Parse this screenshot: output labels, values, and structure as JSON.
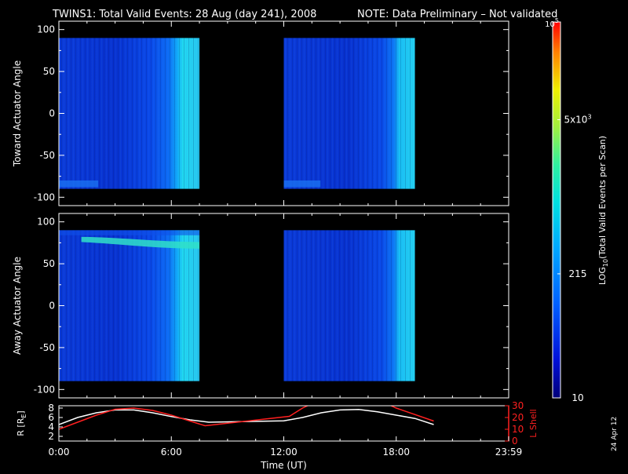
{
  "header": {
    "title": "TWINS1: Total Valid Events: 28 Aug (day 241), 2008",
    "note": "NOTE: Data Preliminary – Not validated",
    "note_color": "#ff2020"
  },
  "stamp": "24 Apr 12",
  "chart_data": [
    {
      "type": "heatmap",
      "ylabel": "Toward Actuator Angle",
      "ylim": [
        -110,
        110
      ],
      "yticks": [
        100,
        50,
        0,
        -50,
        -100
      ],
      "xlim_hours": [
        0,
        24
      ],
      "data_blocks": [
        {
          "start": "00:00",
          "end": "07:30",
          "angle_range": [
            -90,
            90
          ],
          "low_angle_band": true
        },
        {
          "start": "12:00",
          "end": "19:00",
          "angle_range": [
            -90,
            90
          ],
          "low_angle_band": true
        }
      ]
    },
    {
      "type": "heatmap",
      "ylabel": "Away Actuator Angle",
      "ylim": [
        -110,
        110
      ],
      "yticks": [
        100,
        50,
        0,
        -50,
        -100
      ],
      "xlim_hours": [
        0,
        24
      ],
      "data_blocks": [
        {
          "start": "00:00",
          "end": "07:30",
          "angle_range": [
            -90,
            90
          ],
          "high_angle_band": true
        },
        {
          "start": "12:00",
          "end": "19:00",
          "angle_range": [
            -90,
            90
          ],
          "high_angle_band": false
        }
      ]
    },
    {
      "type": "line",
      "xlabel": "Time (UT)",
      "xticks": [
        "0:00",
        "6:00",
        "12:00",
        "18:00",
        "23:59"
      ],
      "left_axis": {
        "label": "R [R",
        "label_sub": "E",
        "label_end": "]",
        "ticks": [
          8,
          6,
          4,
          2
        ],
        "range": [
          1,
          8.5
        ]
      },
      "right_axis": {
        "label": "L Shell",
        "ticks": [
          30,
          20,
          10,
          0
        ],
        "range": [
          0,
          30
        ],
        "color": "#ff2020"
      },
      "series": [
        {
          "name": "R",
          "color": "#ffffff",
          "x_hours": [
            0,
            1,
            2,
            3,
            4,
            5,
            6,
            7,
            8,
            12,
            13,
            14,
            15,
            16,
            17,
            18,
            19,
            20
          ],
          "y": [
            4.5,
            6.0,
            7.0,
            7.6,
            7.6,
            7.0,
            6.2,
            5.5,
            5.0,
            5.3,
            6.0,
            7.0,
            7.6,
            7.7,
            7.2,
            6.5,
            5.8,
            4.5
          ]
        },
        {
          "name": "L Shell",
          "color": "#ff2020",
          "x_hours": [
            0,
            1,
            2,
            3,
            4,
            5,
            6,
            7,
            7.8,
            12.3,
            13,
            13.4,
            17.6,
            18,
            20
          ],
          "y": [
            10,
            16,
            22,
            27,
            28,
            26,
            22,
            17,
            13,
            21,
            28,
            31,
            31,
            28,
            17
          ]
        }
      ]
    },
    {
      "type": "colorbar",
      "label": "LOG",
      "label_sub": "10",
      "label_rest": "(Total Valid  Events per Scan)",
      "ticks": [
        {
          "text": "10",
          "sup": "",
          "frac": 0.0
        },
        {
          "text": "215",
          "sup": "",
          "frac": 0.33
        },
        {
          "text": "5x10",
          "sup": "3",
          "frac": 0.74
        },
        {
          "text": "10",
          "sup": "5",
          "frac": 1.0
        }
      ]
    }
  ]
}
